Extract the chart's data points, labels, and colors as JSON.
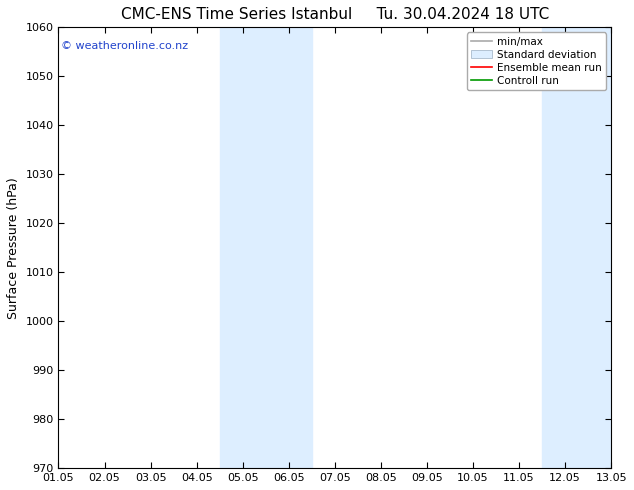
{
  "title": "CMC-ENS Time Series Istanbul     Tu. 30.04.2024 18 UTC",
  "ylabel": "Surface Pressure (hPa)",
  "ylim": [
    970,
    1060
  ],
  "yticks": [
    970,
    980,
    990,
    1000,
    1010,
    1020,
    1030,
    1040,
    1050,
    1060
  ],
  "xlim_num": [
    0,
    12
  ],
  "xtick_labels": [
    "01.05",
    "02.05",
    "03.05",
    "04.05",
    "05.05",
    "06.05",
    "07.05",
    "08.05",
    "09.05",
    "10.05",
    "11.05",
    "12.05",
    "13.05"
  ],
  "xtick_positions": [
    0,
    1,
    2,
    3,
    4,
    5,
    6,
    7,
    8,
    9,
    10,
    11,
    12
  ],
  "shaded_bands": [
    {
      "xmin": 3.5,
      "xmax": 5.5,
      "color": "#ddeeff"
    },
    {
      "xmin": 10.5,
      "xmax": 12.5,
      "color": "#ddeeff"
    }
  ],
  "watermark": "© weatheronline.co.nz",
  "legend_labels": [
    "min/max",
    "Standard deviation",
    "Ensemble mean run",
    "Controll run"
  ],
  "legend_colors_line": [
    "#aaaaaa",
    "#cccccc",
    "#ff0000",
    "#009900"
  ],
  "band_color": "#ddeeff",
  "band_edge_color": "#aabbcc",
  "background_color": "#ffffff",
  "plot_bg_color": "#ffffff",
  "title_fontsize": 11,
  "axis_label_fontsize": 9,
  "tick_fontsize": 8,
  "legend_fontsize": 7.5,
  "watermark_fontsize": 8,
  "watermark_color": "#2244cc"
}
